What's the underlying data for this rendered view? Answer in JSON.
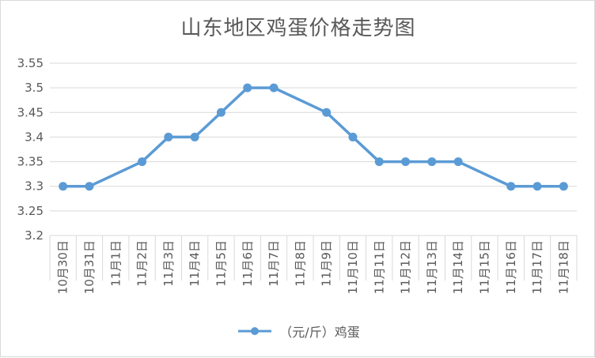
{
  "chart_data": {
    "type": "line",
    "title": "山东地区鸡蛋价格走势图",
    "categories": [
      "10月30日",
      "10月31日",
      "11月1日",
      "11月2日",
      "11月3日",
      "11月4日",
      "11月5日",
      "11月6日",
      "11月7日",
      "11月8日",
      "11月9日",
      "11月10日",
      "11月11日",
      "11月12日",
      "11月13日",
      "11月14日",
      "11月15日",
      "11月16日",
      "11月17日",
      "11月18日"
    ],
    "series": [
      {
        "name": "（元/斤）鸡蛋",
        "points": [
          {
            "x": "10月30日",
            "y": 3.3
          },
          {
            "x": "10月31日",
            "y": 3.3
          },
          {
            "x": "11月2日",
            "y": 3.35
          },
          {
            "x": "11月3日",
            "y": 3.4
          },
          {
            "x": "11月4日",
            "y": 3.4
          },
          {
            "x": "11月5日",
            "y": 3.45
          },
          {
            "x": "11月6日",
            "y": 3.5
          },
          {
            "x": "11月7日",
            "y": 3.5
          },
          {
            "x": "11月9日",
            "y": 3.45
          },
          {
            "x": "11月10日",
            "y": 3.4
          },
          {
            "x": "11月11日",
            "y": 3.35
          },
          {
            "x": "11月12日",
            "y": 3.35
          },
          {
            "x": "11月13日",
            "y": 3.35
          },
          {
            "x": "11月14日",
            "y": 3.35
          },
          {
            "x": "11月16日",
            "y": 3.3
          },
          {
            "x": "11月17日",
            "y": 3.3
          },
          {
            "x": "11月18日",
            "y": 3.3
          }
        ]
      }
    ],
    "yticks": [
      "3.2",
      "3.25",
      "3.3",
      "3.35",
      "3.4",
      "3.45",
      "3.5",
      "3.55"
    ],
    "ylim": [
      3.2,
      3.55
    ],
    "grid": true,
    "legend_position": "bottom",
    "colors": {
      "series": "#5b9bd5",
      "grid": "#d9d9d9",
      "text": "#595959"
    }
  }
}
